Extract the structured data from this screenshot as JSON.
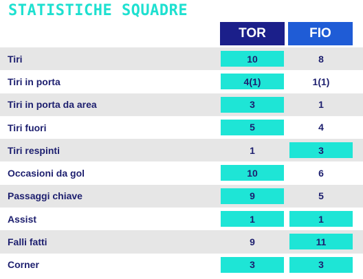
{
  "title": "STATISTICHE SQUADRE",
  "teams": {
    "home": "TOR",
    "away": "FIO"
  },
  "colors": {
    "title": "#1ee0d0",
    "home_header": "#1b1f8a",
    "away_header": "#1f5cd6",
    "highlight": "#1ee5d6",
    "text": "#1c1e6e"
  },
  "stats": [
    {
      "label": "Tiri",
      "home": "10",
      "away": "8",
      "highlight": "home"
    },
    {
      "label": "Tiri in porta",
      "home": "4(1)",
      "away": "1(1)",
      "highlight": "home"
    },
    {
      "label": "Tiri in porta da area",
      "home": "3",
      "away": "1",
      "highlight": "home"
    },
    {
      "label": "Tiri fuori",
      "home": "5",
      "away": "4",
      "highlight": "home"
    },
    {
      "label": "Tiri respinti",
      "home": "1",
      "away": "3",
      "highlight": "away"
    },
    {
      "label": "Occasioni da gol",
      "home": "10",
      "away": "6",
      "highlight": "home"
    },
    {
      "label": "Passaggi chiave",
      "home": "9",
      "away": "5",
      "highlight": "home"
    },
    {
      "label": "Assist",
      "home": "1",
      "away": "1",
      "highlight": "both"
    },
    {
      "label": "Falli fatti",
      "home": "9",
      "away": "11",
      "highlight": "away"
    },
    {
      "label": "Corner",
      "home": "3",
      "away": "3",
      "highlight": "both"
    }
  ]
}
